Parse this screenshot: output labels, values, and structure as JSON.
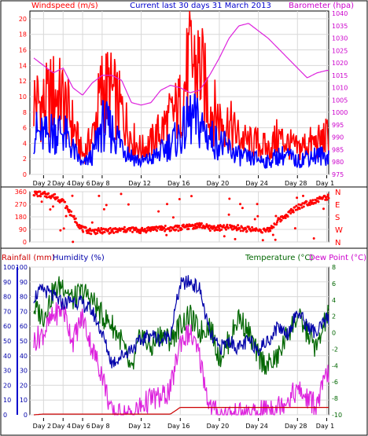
{
  "chart_data": [
    {
      "type": "line",
      "title": "Current last 30 days 31 March 2013",
      "left_label": "Windspeed (m/s)",
      "right_label": "Barometer (hpa)",
      "left_ylim": [
        0,
        21
      ],
      "right_ylim": [
        975,
        1041
      ],
      "left_ticks": [
        "0",
        "2",
        "4",
        "6",
        "8",
        "10",
        "12",
        "14",
        "16",
        "18",
        "20"
      ],
      "right_ticks": [
        "975",
        "980",
        "985",
        "990",
        "995",
        "1000",
        "1005",
        "1010",
        "1015",
        "1020",
        "1025",
        "1030",
        "1035",
        "1040"
      ],
      "x_labels": [
        "Day 2",
        "Day 4",
        "Day 6",
        "Day 8",
        "Day 12",
        "Day 16",
        "Day 20",
        "Day 24",
        "Day 28",
        "Day 1"
      ],
      "x_label_days": [
        2,
        4,
        6,
        8,
        12,
        16,
        20,
        24,
        28,
        31
      ],
      "grid": true,
      "colors": {
        "gust": "#ff0000",
        "avg": "#0000ff",
        "baro": "#dd22dd"
      },
      "series": [
        {
          "role": "gust",
          "color": "#ff0000",
          "x": [
            1,
            2,
            3,
            4,
            5,
            6,
            7,
            8,
            9,
            10,
            11,
            12,
            13,
            14,
            15,
            16,
            17,
            18,
            19,
            20,
            21,
            22,
            23,
            24,
            25,
            26,
            27,
            28,
            29,
            30,
            31
          ],
          "values": [
            12,
            11,
            13,
            12,
            8,
            3,
            6,
            14,
            13,
            10,
            6,
            4,
            5,
            7,
            9,
            11,
            18,
            17,
            11,
            9,
            8,
            6,
            5,
            5,
            4,
            6,
            5,
            4,
            5,
            5,
            6
          ]
        },
        {
          "role": "avg",
          "color": "#0000ff",
          "x": [
            1,
            2,
            3,
            4,
            5,
            6,
            7,
            8,
            9,
            10,
            11,
            12,
            13,
            14,
            15,
            16,
            17,
            18,
            19,
            20,
            21,
            22,
            23,
            24,
            25,
            26,
            27,
            28,
            29,
            30,
            31
          ],
          "values": [
            7,
            6,
            7,
            7,
            4,
            1.5,
            3,
            8,
            7,
            5,
            3,
            2,
            2.5,
            3.5,
            5,
            6,
            9,
            8,
            6,
            5,
            4,
            3,
            2.5,
            2.5,
            2,
            3,
            3,
            2,
            3,
            3,
            3
          ]
        },
        {
          "role": "baro",
          "color": "#dd22dd",
          "x": [
            1,
            2,
            3,
            4,
            5,
            6,
            7,
            8,
            9,
            10,
            11,
            12,
            13,
            14,
            15,
            16,
            17,
            18,
            19,
            20,
            21,
            22,
            23,
            24,
            25,
            26,
            27,
            28,
            29,
            30,
            31
          ],
          "values": [
            1022,
            1019,
            1016,
            1018,
            1010,
            1007,
            1012,
            1015,
            1015,
            1013,
            1004,
            1003,
            1004,
            1009,
            1011,
            1010,
            1008,
            1009,
            1015,
            1022,
            1030,
            1035,
            1036,
            1033,
            1030,
            1026,
            1022,
            1018,
            1014,
            1016,
            1017
          ]
        }
      ]
    },
    {
      "type": "scatter",
      "title": "",
      "left_ylim": [
        0,
        360
      ],
      "left_ticks": [
        "0",
        "90",
        "180",
        "270",
        "360"
      ],
      "right_ticks": [
        "N",
        "W",
        "S",
        "E",
        "N"
      ],
      "x_labels": [
        "Day 2",
        "Day 4",
        "Day 6",
        "Day 8",
        "Day 12",
        "Day 16",
        "Day 20",
        "Day 24",
        "Day 28",
        "Day 1"
      ],
      "x_label_days": [
        2,
        4,
        6,
        8,
        12,
        16,
        20,
        24,
        28,
        31
      ],
      "colors": {
        "dir": "#ff0000"
      },
      "series": [
        {
          "role": "direction",
          "color": "#ff0000",
          "x": [
            1,
            2,
            3,
            4,
            5,
            6,
            7,
            8,
            9,
            10,
            11,
            12,
            13,
            14,
            15,
            16,
            17,
            18,
            19,
            20,
            21,
            22,
            23,
            24,
            25,
            26,
            27,
            28,
            29,
            30,
            31
          ],
          "values": [
            350,
            340,
            330,
            290,
            180,
            90,
            75,
            80,
            80,
            85,
            90,
            80,
            95,
            100,
            95,
            100,
            110,
            120,
            100,
            100,
            105,
            100,
            90,
            85,
            80,
            150,
            200,
            250,
            280,
            300,
            320
          ]
        }
      ]
    },
    {
      "type": "line",
      "title": "",
      "left_label_1": "Rainfall (mm)",
      "left_label_2": "Humidity (%)",
      "right_label_1": "Temperature (°C)",
      "right_label_2": "Dew Point (°C)",
      "rain_ticks": [
        "0",
        "10",
        "20",
        "30",
        "40",
        "50",
        "60",
        "70",
        "80",
        "90",
        "100"
      ],
      "hum_ticks": [
        "0",
        "10",
        "20",
        "30",
        "40",
        "50",
        "60",
        "70",
        "80",
        "90",
        "100"
      ],
      "temp_ticks": [
        "-10",
        "-8",
        "-6",
        "-4",
        "-2",
        "0",
        "2",
        "4",
        "6",
        "8"
      ],
      "temp_ylim": [
        -10,
        8
      ],
      "x_labels": [
        "Day 2",
        "Day 4",
        "Day 6",
        "Day 8",
        "Day 12",
        "Day 16",
        "Day 20",
        "Day 24",
        "Day 28",
        "Day 1"
      ],
      "x_label_days": [
        2,
        4,
        6,
        8,
        12,
        16,
        20,
        24,
        28,
        31
      ],
      "colors": {
        "rain": "#cc0000",
        "hum": "#0000aa",
        "temp": "#006600",
        "dew": "#dd22dd"
      },
      "series": [
        {
          "role": "humidity",
          "color": "#0000aa",
          "x": [
            1,
            2,
            3,
            4,
            5,
            6,
            7,
            8,
            9,
            10,
            11,
            12,
            13,
            14,
            15,
            16,
            17,
            18,
            19,
            20,
            21,
            22,
            23,
            24,
            25,
            26,
            27,
            28,
            29,
            30,
            31
          ],
          "values": [
            80,
            85,
            80,
            75,
            78,
            75,
            70,
            55,
            35,
            40,
            45,
            50,
            55,
            50,
            55,
            88,
            90,
            85,
            55,
            45,
            50,
            45,
            50,
            45,
            50,
            60,
            55,
            70,
            60,
            55,
            65
          ]
        },
        {
          "role": "temperature",
          "color": "#006600",
          "x": [
            1,
            2,
            3,
            4,
            5,
            6,
            7,
            8,
            9,
            10,
            11,
            12,
            13,
            14,
            15,
            16,
            17,
            18,
            19,
            20,
            21,
            22,
            23,
            24,
            25,
            26,
            27,
            28,
            29,
            30,
            31
          ],
          "values": [
            3,
            2,
            5,
            6,
            4,
            5,
            4,
            2,
            1,
            -1,
            -5,
            0,
            -2,
            0,
            -1,
            1,
            2,
            0,
            1,
            -3,
            -1,
            2,
            0,
            -3,
            -4,
            -3,
            0,
            2,
            0,
            -2,
            2
          ]
        },
        {
          "role": "dewpoint",
          "color": "#dd22dd",
          "x": [
            1,
            2,
            3,
            4,
            5,
            6,
            7,
            8,
            9,
            10,
            11,
            12,
            13,
            14,
            15,
            16,
            17,
            18,
            19,
            20,
            21,
            22,
            23,
            24,
            25,
            26,
            27,
            28,
            29,
            30,
            31
          ],
          "values": [
            -1,
            0,
            2,
            3,
            -1,
            2,
            -2,
            -5,
            -10,
            -10,
            -10,
            -9,
            -8,
            -8,
            -7,
            -1,
            0,
            -3,
            -9,
            -10,
            -10,
            -10,
            -10,
            -10,
            -9,
            -9,
            -8,
            -7,
            -8,
            -9,
            -5
          ]
        },
        {
          "role": "rainfall",
          "color": "#cc0000",
          "x": [
            1,
            2,
            3,
            4,
            5,
            6,
            7,
            8,
            9,
            10,
            11,
            12,
            13,
            14,
            15,
            16,
            17,
            18,
            19,
            20,
            21,
            22,
            23,
            24,
            25,
            26,
            27,
            28,
            29,
            30,
            31
          ],
          "values": [
            0,
            0.5,
            0.5,
            0.5,
            0.5,
            0.5,
            0.5,
            0.5,
            0.5,
            0.5,
            0.5,
            0.5,
            0.5,
            0.5,
            0.5,
            5,
            5,
            5,
            5,
            5,
            5,
            5,
            5,
            5,
            5,
            5,
            5,
            5,
            5,
            5,
            5
          ]
        }
      ]
    }
  ]
}
